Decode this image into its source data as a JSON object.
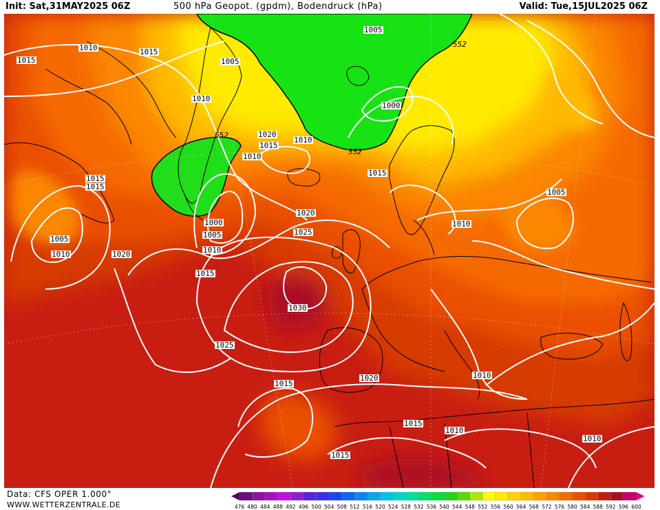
{
  "header": {
    "init": "Init: Sat,31MAY2025 06Z",
    "title": "500 hPa Geopot. (gpdm), Bodendruck (hPa)",
    "valid": "Valid: Tue,15JUL2025 06Z"
  },
  "footer": {
    "source": "Data: CFS OPER 1.000°",
    "site": "WWW.WETTERZENTRALE.DE"
  },
  "legend": {
    "levels": [
      "476",
      "480",
      "484",
      "488",
      "492",
      "496",
      "500",
      "504",
      "508",
      "512",
      "516",
      "520",
      "524",
      "528",
      "532",
      "536",
      "540",
      "544",
      "548",
      "552",
      "556",
      "560",
      "564",
      "568",
      "572",
      "576",
      "580",
      "584",
      "588",
      "592",
      "596",
      "600"
    ],
    "colors": [
      "#56005a",
      "#6d0c7d",
      "#8a13a6",
      "#a60fc6",
      "#c10fe6",
      "#8c1ed6",
      "#5a22e2",
      "#3a2ef0",
      "#1c44f4",
      "#0f64f8",
      "#0c86f6",
      "#08a6ee",
      "#05c2e4",
      "#05d6c8",
      "#05e09c",
      "#07e06a",
      "#08dc3e",
      "#20d420",
      "#5ad80a",
      "#aaea02",
      "#fdfd00",
      "#ffea00",
      "#ffd200",
      "#ffba00",
      "#ffa000",
      "#fb8600",
      "#f56a00",
      "#ea5000",
      "#d63a06",
      "#c41e12",
      "#ac0c26",
      "#c8006a",
      "#e6007e"
    ]
  },
  "map": {
    "isobar_labels": [
      "1015",
      "1010",
      "1015",
      "1005",
      "1010",
      "1005",
      "1000",
      "552",
      "1020",
      "1015",
      "1010",
      "1010",
      "552",
      "1015",
      "1000",
      "1015",
      "1015",
      "1005",
      "1010",
      "1010",
      "1020",
      "1000",
      "1005",
      "1010",
      "1025",
      "1020",
      "1015",
      "1030",
      "1025",
      "1015",
      "1020",
      "1010",
      "1015",
      "1010",
      "1015",
      "1010",
      "1005",
      "1010"
    ],
    "contour_552_label": "552",
    "colors": {
      "isobar": "#ffffff",
      "coast": "#000000",
      "green_core": "#17e314",
      "green_edge": "#5cdc14"
    }
  }
}
